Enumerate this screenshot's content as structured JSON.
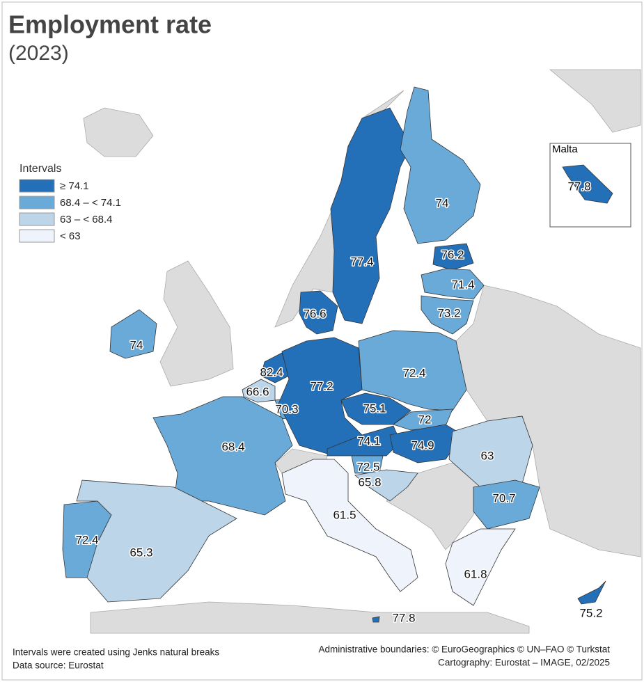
{
  "map": {
    "type": "choropleth",
    "title": "Employment rate",
    "subtitle": "(2023)",
    "legend": {
      "title": "Intervals",
      "items": [
        {
          "label": "≥ 74.1",
          "color": "#2470b8",
          "min": 74.1
        },
        {
          "label": "68.4 – < 74.1",
          "color": "#6aaad8",
          "min": 68.4
        },
        {
          "label": "63 – < 68.4",
          "color": "#bcd5e9",
          "min": 63
        },
        {
          "label": "< 63",
          "color": "#eef3fc",
          "min": null
        }
      ]
    },
    "regions": [
      {
        "value": 77.4
      },
      {
        "value": 74
      },
      {
        "value": 76.2
      },
      {
        "value": 71.4
      },
      {
        "value": 73.2
      },
      {
        "value": 76.6
      },
      {
        "value": 74
      },
      {
        "value": 82.4
      },
      {
        "value": 66.6
      },
      {
        "value": 70.3
      },
      {
        "value": 77.2
      },
      {
        "value": 72.4
      },
      {
        "value": 75.1
      },
      {
        "value": 72
      },
      {
        "value": 74.1
      },
      {
        "value": 74.9
      },
      {
        "value": 63
      },
      {
        "value": 72.5
      },
      {
        "value": 65.8
      },
      {
        "value": 68.4
      },
      {
        "value": 70.7
      },
      {
        "value": 61.5
      },
      {
        "value": 72.4
      },
      {
        "value": 65.3
      },
      {
        "value": 61.8
      },
      {
        "value": 75.2
      },
      {
        "value": 77.8
      }
    ],
    "inset": {
      "title": "Malta",
      "value": 77.8
    },
    "notes": [
      "Intervals were created using Jenks natural breaks",
      "Data source: Eurostat"
    ],
    "credits": [
      "Administrative boundaries: © EuroGeographics © UN–FAO © Turkstat",
      "Cartography: Eurostat – IMAGE, 02/2025"
    ]
  }
}
